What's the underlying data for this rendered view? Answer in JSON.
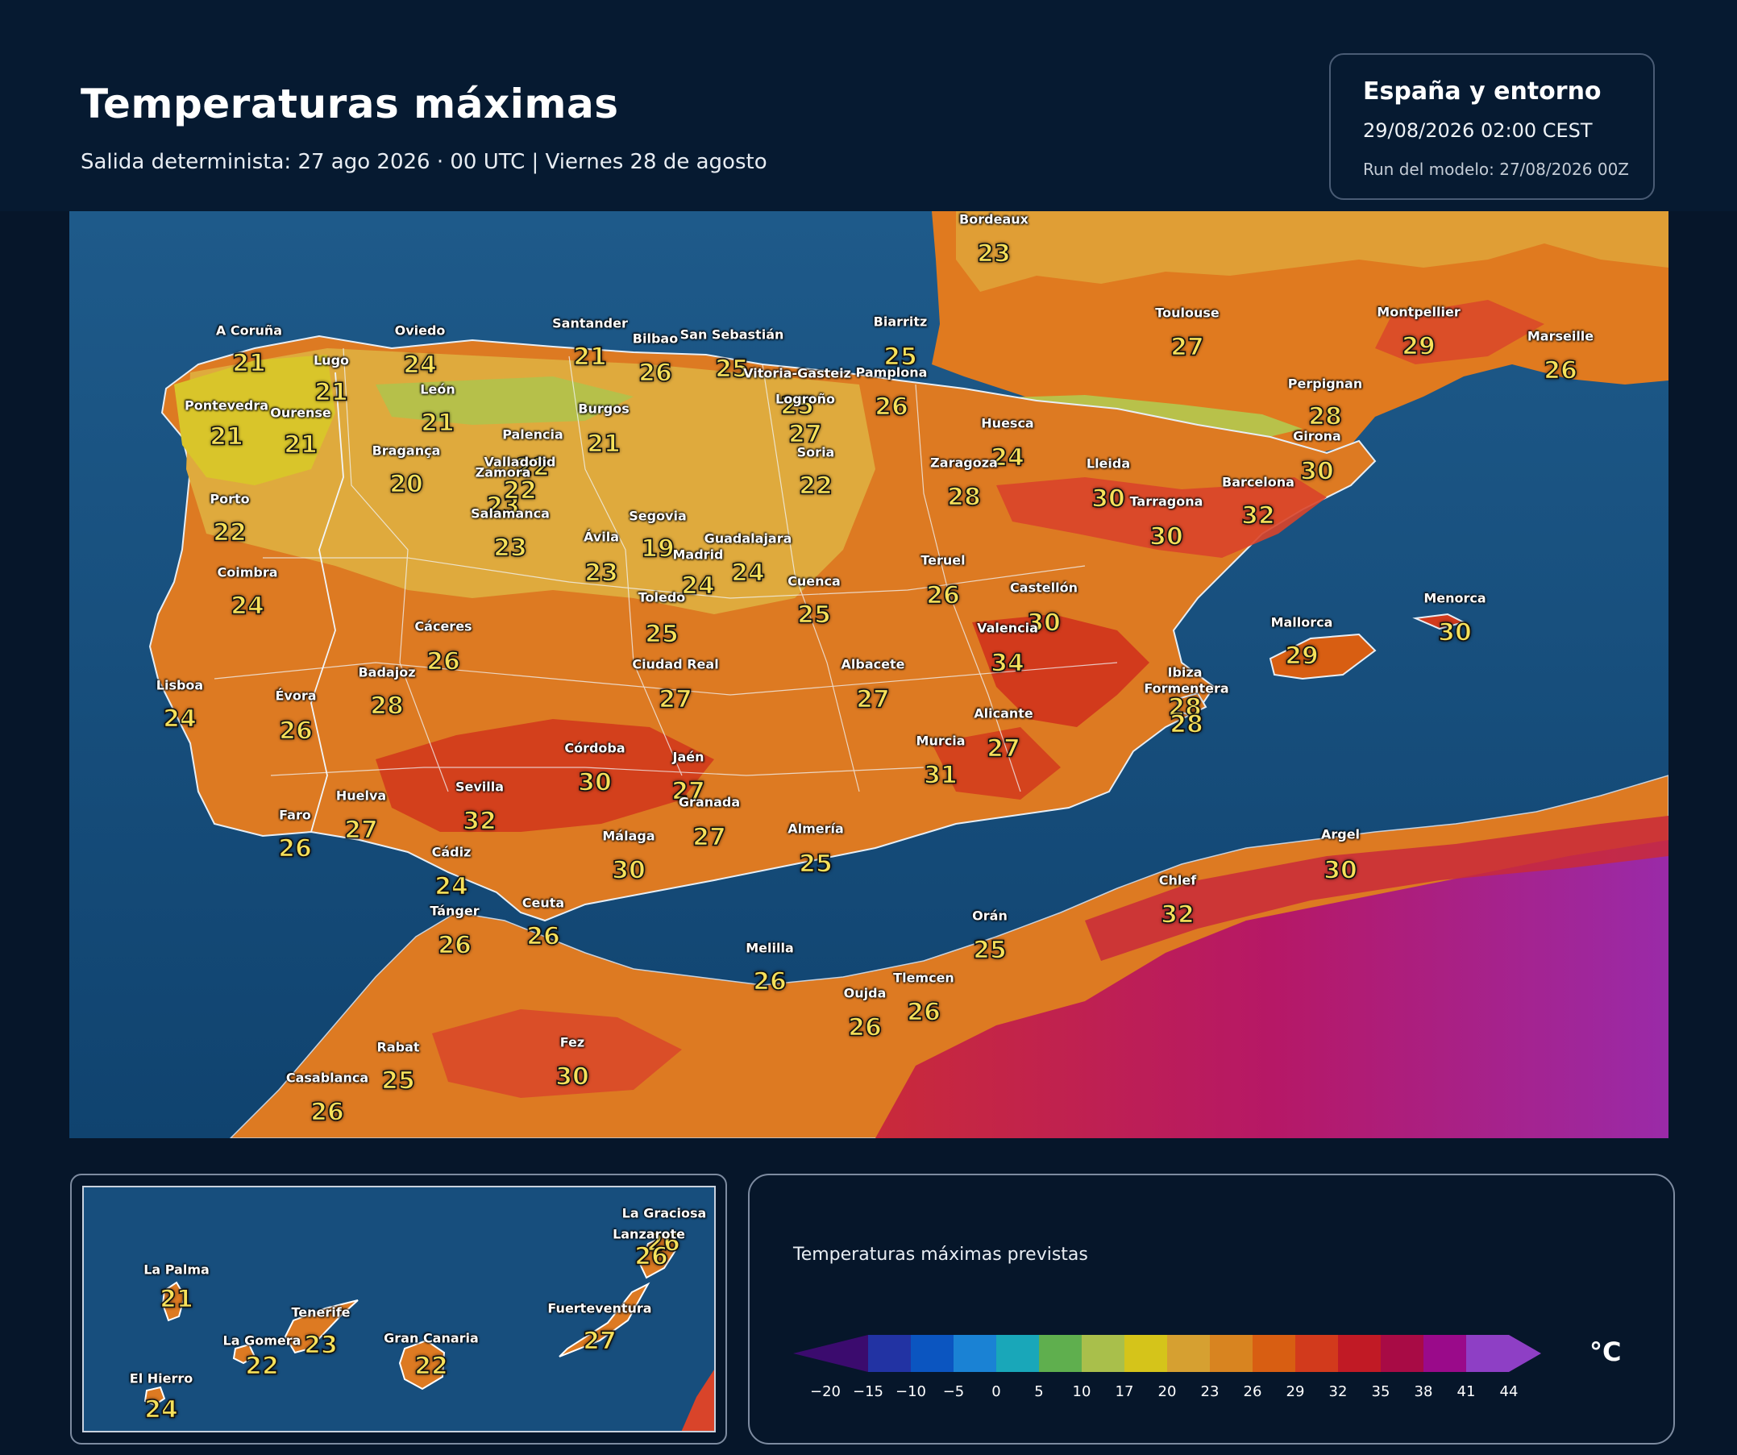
{
  "header": {
    "title": "Temperaturas máximas",
    "subtitle": "Salida determinista: 27 ago 2026 · 00 UTC  |  Viernes 28 de agosto"
  },
  "info": {
    "region": "España y entorno",
    "valid": "29/08/2026  02:00 CEST",
    "run": "Run del modelo: 27/08/2026 00Z"
  },
  "cities": [
    {
      "name": "Bordeaux",
      "temp": "23"
    },
    {
      "name": "Toulouse",
      "temp": "27"
    },
    {
      "name": "Montpellier",
      "temp": "29"
    },
    {
      "name": "Marseille",
      "temp": "26"
    },
    {
      "name": "Biarritz",
      "temp": "25"
    },
    {
      "name": "A Coruña",
      "temp": "21"
    },
    {
      "name": "Lugo",
      "temp": "21"
    },
    {
      "name": "Oviedo",
      "temp": "24"
    },
    {
      "name": "Santander",
      "temp": "21"
    },
    {
      "name": "Bilbao",
      "temp": "26"
    },
    {
      "name": "San Sebastián",
      "temp": "25"
    },
    {
      "name": "Vitoria-Gasteiz",
      "temp": "25"
    },
    {
      "name": "Pamplona",
      "temp": "26"
    },
    {
      "name": "Pontevedra",
      "temp": "21"
    },
    {
      "name": "Ourense",
      "temp": "21"
    },
    {
      "name": "León",
      "temp": "21"
    },
    {
      "name": "Burgos",
      "temp": "21"
    },
    {
      "name": "Logroño",
      "temp": "27"
    },
    {
      "name": "Palencia",
      "temp": "22"
    },
    {
      "name": "Huesca",
      "temp": "24"
    },
    {
      "name": "Perpignan",
      "temp": "28"
    },
    {
      "name": "Girona",
      "temp": "30"
    },
    {
      "name": "Bragança",
      "temp": "20"
    },
    {
      "name": "Zamora",
      "temp": "23"
    },
    {
      "name": "Valladolid",
      "temp": "22"
    },
    {
      "name": "Soria",
      "temp": "22"
    },
    {
      "name": "Zaragoza",
      "temp": "28"
    },
    {
      "name": "Lleida",
      "temp": "30"
    },
    {
      "name": "Barcelona",
      "temp": "32"
    },
    {
      "name": "Tarragona",
      "temp": "30"
    },
    {
      "name": "Porto",
      "temp": "22"
    },
    {
      "name": "Salamanca",
      "temp": "23"
    },
    {
      "name": "Segovia",
      "temp": "19"
    },
    {
      "name": "Ávila",
      "temp": "23"
    },
    {
      "name": "Madrid",
      "temp": "24"
    },
    {
      "name": "Guadalajara",
      "temp": "24"
    },
    {
      "name": "Teruel",
      "temp": "26"
    },
    {
      "name": "Coimbra",
      "temp": "24"
    },
    {
      "name": "Cuenca",
      "temp": "25"
    },
    {
      "name": "Toledo",
      "temp": "25"
    },
    {
      "name": "Castellón",
      "temp": "30"
    },
    {
      "name": "Menorca",
      "temp": "30"
    },
    {
      "name": "Mallorca",
      "temp": "29"
    },
    {
      "name": "Cáceres",
      "temp": "26"
    },
    {
      "name": "Valencia",
      "temp": "34"
    },
    {
      "name": "Badajoz",
      "temp": "28"
    },
    {
      "name": "Ciudad Real",
      "temp": "27"
    },
    {
      "name": "Albacete",
      "temp": "27"
    },
    {
      "name": "Ibiza",
      "temp": "28"
    },
    {
      "name": "Formentera",
      "temp": "28"
    },
    {
      "name": "Lisboa",
      "temp": "24"
    },
    {
      "name": "Évora",
      "temp": "26"
    },
    {
      "name": "Alicante",
      "temp": "27"
    },
    {
      "name": "Murcia",
      "temp": "31"
    },
    {
      "name": "Córdoba",
      "temp": "30"
    },
    {
      "name": "Jaén",
      "temp": "27"
    },
    {
      "name": "Huelva",
      "temp": "27"
    },
    {
      "name": "Sevilla",
      "temp": "32"
    },
    {
      "name": "Granada",
      "temp": "27"
    },
    {
      "name": "Faro",
      "temp": "26"
    },
    {
      "name": "Almería",
      "temp": "25"
    },
    {
      "name": "Málaga",
      "temp": "30"
    },
    {
      "name": "Cádiz",
      "temp": "24"
    },
    {
      "name": "Argel",
      "temp": "30"
    },
    {
      "name": "Chlef",
      "temp": "32"
    },
    {
      "name": "Tánger",
      "temp": "26"
    },
    {
      "name": "Ceuta",
      "temp": "26"
    },
    {
      "name": "Orán",
      "temp": "25"
    },
    {
      "name": "Melilla",
      "temp": "26"
    },
    {
      "name": "Tlemcen",
      "temp": "26"
    },
    {
      "name": "Oujda",
      "temp": "26"
    },
    {
      "name": "Rabat",
      "temp": "25"
    },
    {
      "name": "Fez",
      "temp": "30"
    },
    {
      "name": "Casablanca",
      "temp": "26"
    }
  ],
  "canarias": [
    {
      "name": "La Graciosa",
      "temp": "26"
    },
    {
      "name": "Lanzarote",
      "temp": "26"
    },
    {
      "name": "La Palma",
      "temp": "21"
    },
    {
      "name": "Fuerteventura",
      "temp": "27"
    },
    {
      "name": "Tenerife",
      "temp": "23"
    },
    {
      "name": "La Gomera",
      "temp": "22"
    },
    {
      "name": "Gran Canaria",
      "temp": "22"
    },
    {
      "name": "El Hierro",
      "temp": "24"
    }
  ],
  "legend": {
    "title": "Temperaturas máximas previstas",
    "unit": "°C",
    "ticks": [
      "−20",
      "−15",
      "−10",
      "−5",
      "0",
      "5",
      "10",
      "17",
      "20",
      "23",
      "26",
      "29",
      "32",
      "35",
      "38",
      "41",
      "44"
    ],
    "colors": [
      "#3b0b6e",
      "#2233a3",
      "#0b55c0",
      "#1a82d4",
      "#19a7b9",
      "#5faf4e",
      "#a9bf4b",
      "#d5c41a",
      "#d6a031",
      "#d88420",
      "#d85e12",
      "#d23a1c",
      "#c11a25",
      "#a80b45",
      "#9a0a8a",
      "#8e3fc5"
    ]
  }
}
